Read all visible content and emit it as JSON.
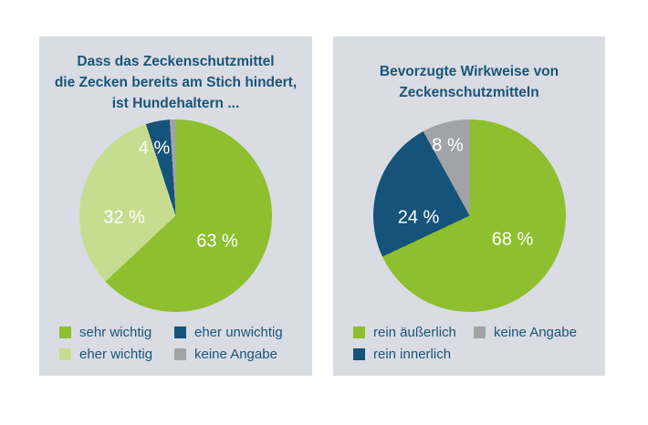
{
  "colors": {
    "page_background": "#ffffff",
    "panel_background": "#d9dce3",
    "heading_text": "#1a5578",
    "slice_label_text": "#ffffff",
    "green": "#8dbf2e",
    "light_green": "#c6dd90",
    "petrol_blue": "#15537a",
    "gray": "#a1a3a6"
  },
  "chart_data": [
    {
      "type": "pie",
      "title": "Dass das Zeckenschutzmittel die Zecken bereits am Stich hindert, ist Hundehaltern ...",
      "title_lines": [
        "Dass das Zeckenschutzmittel",
        "die Zecken bereits am Stich hindert,",
        "ist Hundehaltern ..."
      ],
      "unit": "%",
      "start_angle_deg": 0,
      "direction": "clockwise",
      "slices": [
        {
          "label": "sehr wichtig",
          "value": 63,
          "display_label": "63 %",
          "color": "#8dbf2e"
        },
        {
          "label": "eher wichtig",
          "value": 32,
          "display_label": "32 %",
          "color": "#c6dd90"
        },
        {
          "label": "eher unwichtig",
          "value": 4,
          "display_label": "4 %",
          "color": "#15537a"
        },
        {
          "label": "keine Angabe",
          "value": 1,
          "display_label": "",
          "color": "#a1a3a6"
        }
      ],
      "legend": [
        {
          "label": "sehr wichtig",
          "color": "#8dbf2e"
        },
        {
          "label": "eher unwichtig",
          "color": "#15537a"
        },
        {
          "label": "eher wichtig",
          "color": "#c6dd90"
        },
        {
          "label": "keine Angabe",
          "color": "#a1a3a6"
        }
      ]
    },
    {
      "type": "pie",
      "title": "Bevorzugte Wirkweise von Zeckenschutzmitteln",
      "title_lines": [
        "Bevorzugte Wirkweise von",
        "Zeckenschutzmitteln"
      ],
      "unit": "%",
      "start_angle_deg": 0,
      "direction": "clockwise",
      "slices": [
        {
          "label": "rein äußerlich",
          "value": 68,
          "display_label": "68 %",
          "color": "#8dbf2e"
        },
        {
          "label": "rein innerlich",
          "value": 24,
          "display_label": "24 %",
          "color": "#15537a"
        },
        {
          "label": "keine Angabe",
          "value": 8,
          "display_label": "8 %",
          "color": "#a1a3a6"
        }
      ],
      "legend": [
        {
          "label": "rein äußerlich",
          "color": "#8dbf2e"
        },
        {
          "label": "keine Angabe",
          "color": "#a1a3a6"
        },
        {
          "label": "rein innerlich",
          "color": "#15537a"
        }
      ]
    }
  ]
}
